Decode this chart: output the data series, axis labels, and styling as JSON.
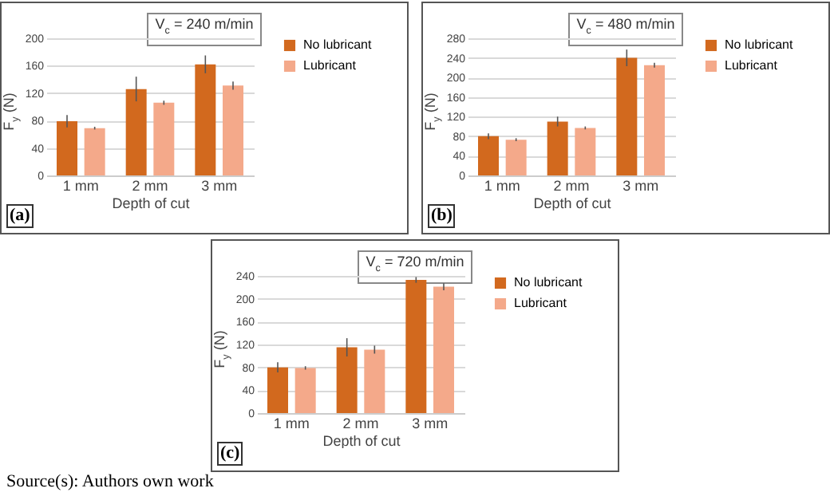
{
  "chart_data": [
    {
      "type": "bar",
      "title": "V$_{c}$ = 240 m/min",
      "xlabel": "Depth of cut",
      "ylabel": "F$_{y}$ (N)",
      "categories": [
        "1 mm",
        "2 mm",
        "3 mm"
      ],
      "ylim": [
        0,
        200
      ],
      "yticks": [
        0,
        40,
        80,
        120,
        160,
        200
      ],
      "grid": "y",
      "legend": "right",
      "annotations": [
        "(a)"
      ],
      "series": [
        {
          "name": "No lubricant",
          "color": "#d2691e",
          "values": [
            79,
            126,
            162
          ],
          "errors": [
            9,
            18,
            13
          ]
        },
        {
          "name": "Lubricant",
          "color": "#f4a98a",
          "values": [
            69,
            106,
            131
          ],
          "errors": [
            2,
            3,
            6
          ]
        }
      ]
    },
    {
      "type": "bar",
      "title": "V$_{c}$ = 480 m/min",
      "xlabel": "Depth of cut",
      "ylabel": "F$_{y}$ (N)",
      "categories": [
        "1 mm",
        "2 mm",
        "3 mm"
      ],
      "ylim": [
        0,
        280
      ],
      "yticks": [
        0,
        40,
        80,
        120,
        160,
        200,
        240,
        280
      ],
      "grid": "y",
      "legend": "right",
      "annotations": [
        "(b)"
      ],
      "series": [
        {
          "name": "No lubricant",
          "color": "#d2691e",
          "values": [
            80,
            110,
            240
          ],
          "errors": [
            6,
            10,
            17
          ]
        },
        {
          "name": "Lubricant",
          "color": "#f4a98a",
          "values": [
            73,
            97,
            225
          ],
          "errors": [
            3,
            3,
            5
          ]
        }
      ]
    },
    {
      "type": "bar",
      "title": "V$_{c}$ = 720 m/min",
      "xlabel": "Depth of cut",
      "ylabel": "F$_{y}$ (N)",
      "categories": [
        "1 mm",
        "2 mm",
        "3 mm"
      ],
      "ylim": [
        0,
        240
      ],
      "yticks": [
        0,
        40,
        80,
        120,
        160,
        200,
        240
      ],
      "grid": "y",
      "legend": "right",
      "annotations": [
        "(c)",
        "Source(s): Authors own work"
      ],
      "series": [
        {
          "name": "No lubricant",
          "color": "#d2691e",
          "values": [
            80,
            115,
            233
          ],
          "errors": [
            9,
            16,
            5
          ]
        },
        {
          "name": "Lubricant",
          "color": "#f4a98a",
          "values": [
            79,
            111,
            221
          ],
          "errors": [
            3,
            7,
            6
          ]
        }
      ]
    }
  ]
}
